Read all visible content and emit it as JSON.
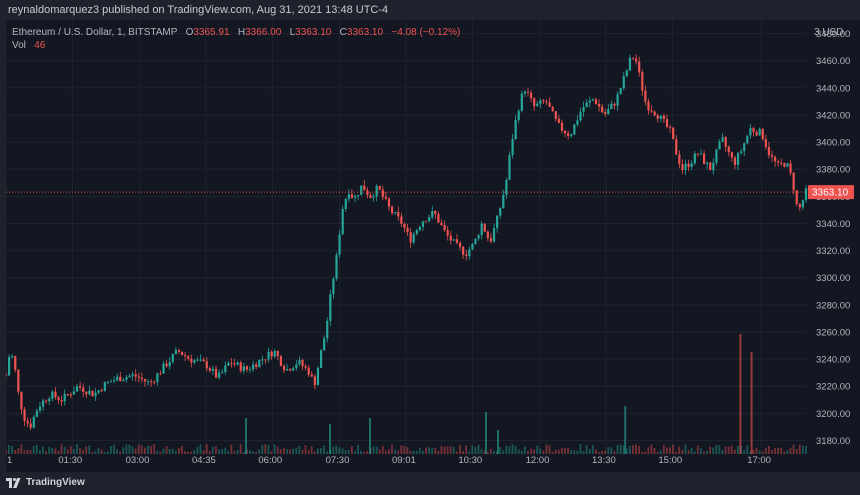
{
  "header": {
    "publish_text": "reynaldomarquez3 published on TradingView.com, Aug 31, 2021 13:48 UTC-4"
  },
  "legend": {
    "symbol": "Ethereum / U.S. Dollar, 1, BITSTAMP",
    "open_label": "O",
    "open": "3365.91",
    "high_label": "H",
    "high": "3366.00",
    "low_label": "L",
    "low": "3363.10",
    "close_label": "C",
    "close": "3363.10",
    "change": "−4.08 (−0.12%)",
    "vol_label": "Vol",
    "vol_value": "46"
  },
  "price_tag": "3363.10",
  "footer": {
    "brand": "TradingView"
  },
  "colors": {
    "up": "#26a69a",
    "down": "#ef5350",
    "background": "#131722",
    "grid": "#1f2330",
    "axis_text": "#b2b5be"
  },
  "chart_data": {
    "type": "candlestick",
    "title": "Ethereum / U.S. Dollar, 1, BITSTAMP",
    "y_unit": "USD",
    "ylim": [
      3170,
      3490
    ],
    "y_ticks": [
      3180,
      3200,
      3220,
      3240,
      3260,
      3280,
      3300,
      3320,
      3340,
      3360,
      3380,
      3400,
      3420,
      3440,
      3460,
      3480
    ],
    "y_tick_labels": [
      "3180.00",
      "3200.00",
      "3220.00",
      "3240.00",
      "3260.00",
      "3280.00",
      "3300.00",
      "3320.00",
      "3340.00",
      "3360.00",
      "3380.00",
      "3400.00",
      "3420.00",
      "3440.00",
      "3460.00",
      "3480.00"
    ],
    "x_ticks": [
      "1",
      "01:30",
      "03:00",
      "04:35",
      "06:00",
      "07:30",
      "09:01",
      "10:30",
      "12:00",
      "13:30",
      "15:00",
      "17:00"
    ],
    "x_tick_pos": [
      0.0,
      0.083,
      0.167,
      0.25,
      0.333,
      0.417,
      0.5,
      0.583,
      0.667,
      0.75,
      0.833,
      0.944
    ],
    "price_path": [
      [
        0.0,
        3228
      ],
      [
        0.005,
        3246
      ],
      [
        0.01,
        3238
      ],
      [
        0.015,
        3216
      ],
      [
        0.022,
        3198
      ],
      [
        0.03,
        3190
      ],
      [
        0.04,
        3205
      ],
      [
        0.055,
        3214
      ],
      [
        0.07,
        3210
      ],
      [
        0.09,
        3220
      ],
      [
        0.11,
        3214
      ],
      [
        0.125,
        3222
      ],
      [
        0.14,
        3226
      ],
      [
        0.16,
        3228
      ],
      [
        0.18,
        3222
      ],
      [
        0.2,
        3236
      ],
      [
        0.215,
        3246
      ],
      [
        0.23,
        3240
      ],
      [
        0.25,
        3236
      ],
      [
        0.265,
        3226
      ],
      [
        0.28,
        3238
      ],
      [
        0.3,
        3232
      ],
      [
        0.32,
        3240
      ],
      [
        0.335,
        3246
      ],
      [
        0.35,
        3232
      ],
      [
        0.365,
        3238
      ],
      [
        0.38,
        3230
      ],
      [
        0.385,
        3220
      ],
      [
        0.392,
        3240
      ],
      [
        0.4,
        3262
      ],
      [
        0.407,
        3292
      ],
      [
        0.414,
        3318
      ],
      [
        0.42,
        3350
      ],
      [
        0.428,
        3365
      ],
      [
        0.435,
        3358
      ],
      [
        0.445,
        3368
      ],
      [
        0.455,
        3360
      ],
      [
        0.465,
        3366
      ],
      [
        0.48,
        3350
      ],
      [
        0.495,
        3340
      ],
      [
        0.505,
        3328
      ],
      [
        0.52,
        3342
      ],
      [
        0.535,
        3348
      ],
      [
        0.55,
        3332
      ],
      [
        0.565,
        3322
      ],
      [
        0.575,
        3318
      ],
      [
        0.585,
        3325
      ],
      [
        0.595,
        3340
      ],
      [
        0.605,
        3326
      ],
      [
        0.615,
        3345
      ],
      [
        0.625,
        3370
      ],
      [
        0.632,
        3400
      ],
      [
        0.64,
        3424
      ],
      [
        0.648,
        3440
      ],
      [
        0.66,
        3426
      ],
      [
        0.675,
        3430
      ],
      [
        0.69,
        3412
      ],
      [
        0.705,
        3405
      ],
      [
        0.72,
        3425
      ],
      [
        0.735,
        3432
      ],
      [
        0.748,
        3420
      ],
      [
        0.762,
        3430
      ],
      [
        0.772,
        3446
      ],
      [
        0.78,
        3460
      ],
      [
        0.786,
        3464
      ],
      [
        0.792,
        3448
      ],
      [
        0.8,
        3428
      ],
      [
        0.815,
        3420
      ],
      [
        0.83,
        3408
      ],
      [
        0.838,
        3392
      ],
      [
        0.845,
        3380
      ],
      [
        0.855,
        3385
      ],
      [
        0.865,
        3392
      ],
      [
        0.88,
        3380
      ],
      [
        0.895,
        3402
      ],
      [
        0.91,
        3384
      ],
      [
        0.92,
        3395
      ],
      [
        0.93,
        3410
      ],
      [
        0.945,
        3406
      ],
      [
        0.955,
        3390
      ],
      [
        0.965,
        3382
      ],
      [
        0.975,
        3385
      ],
      [
        0.983,
        3372
      ],
      [
        0.99,
        3348
      ],
      [
        1.0,
        3363
      ]
    ],
    "volume_spikes": [
      [
        0.3,
        6
      ],
      [
        0.405,
        5
      ],
      [
        0.455,
        6
      ],
      [
        0.6,
        7
      ],
      [
        0.615,
        4
      ],
      [
        0.774,
        8
      ],
      [
        0.918,
        20
      ],
      [
        0.932,
        17
      ]
    ],
    "last_price": 3363.1
  }
}
